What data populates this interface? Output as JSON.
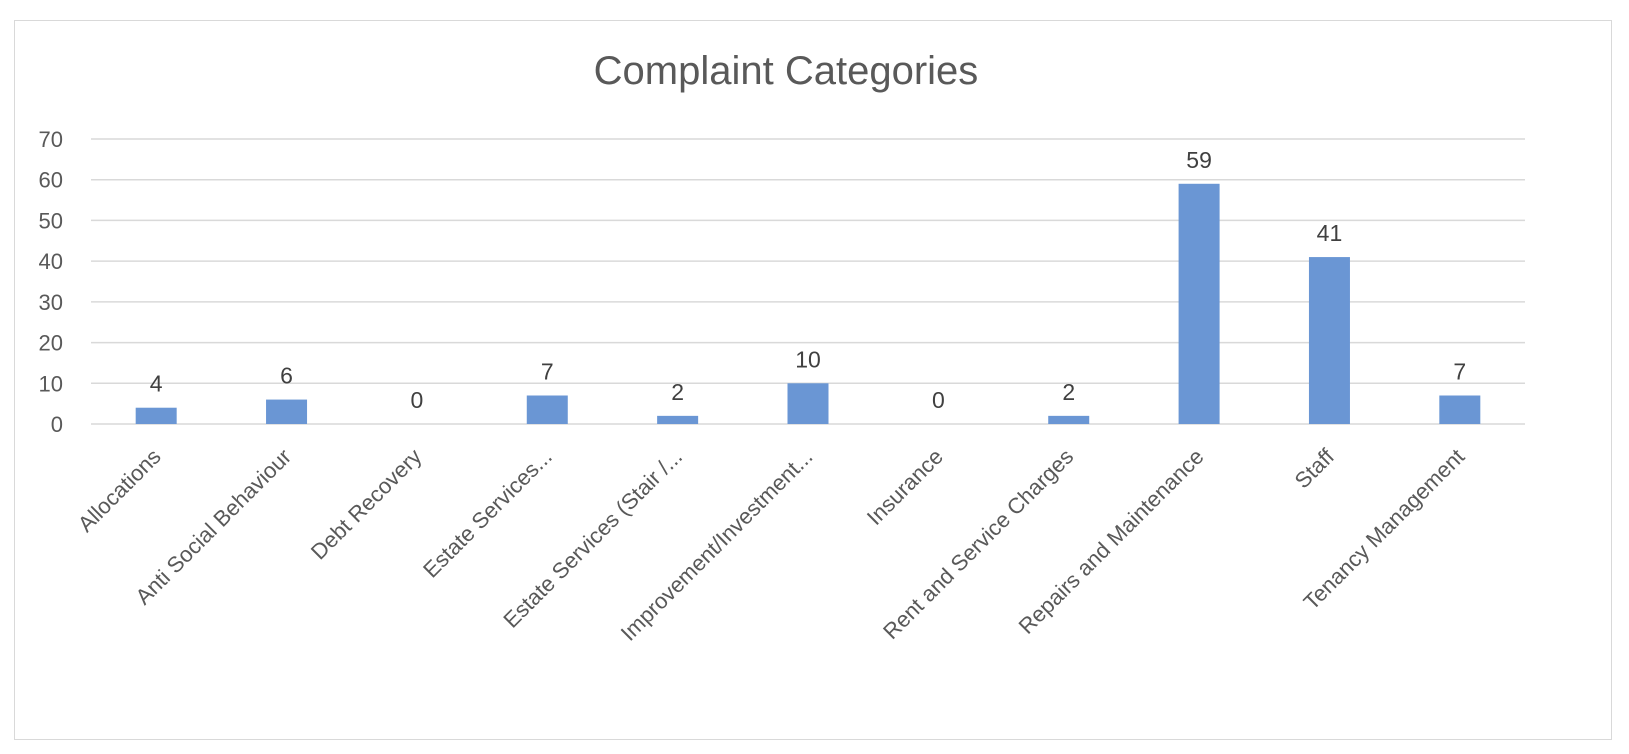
{
  "chart_data": {
    "type": "bar",
    "title": "Complaint Categories",
    "xlabel": "",
    "ylabel": "",
    "ylim": [
      0,
      70
    ],
    "yticks": [
      0,
      10,
      20,
      30,
      40,
      50,
      60,
      70
    ],
    "grid": true,
    "legend": "none",
    "bar_color": "#6a96d4",
    "categories": [
      "Allocations",
      "Anti Social Behaviour",
      "Debt Recovery",
      "Estate Services...",
      "Estate Services (Stair  /...",
      "Improvement/Investment...",
      "Insurance",
      "Rent and Service Charges",
      "Repairs and Maintenance",
      "Staff",
      "Tenancy Management"
    ],
    "values": [
      4,
      6,
      0,
      7,
      2,
      10,
      0,
      2,
      59,
      41,
      7
    ]
  }
}
